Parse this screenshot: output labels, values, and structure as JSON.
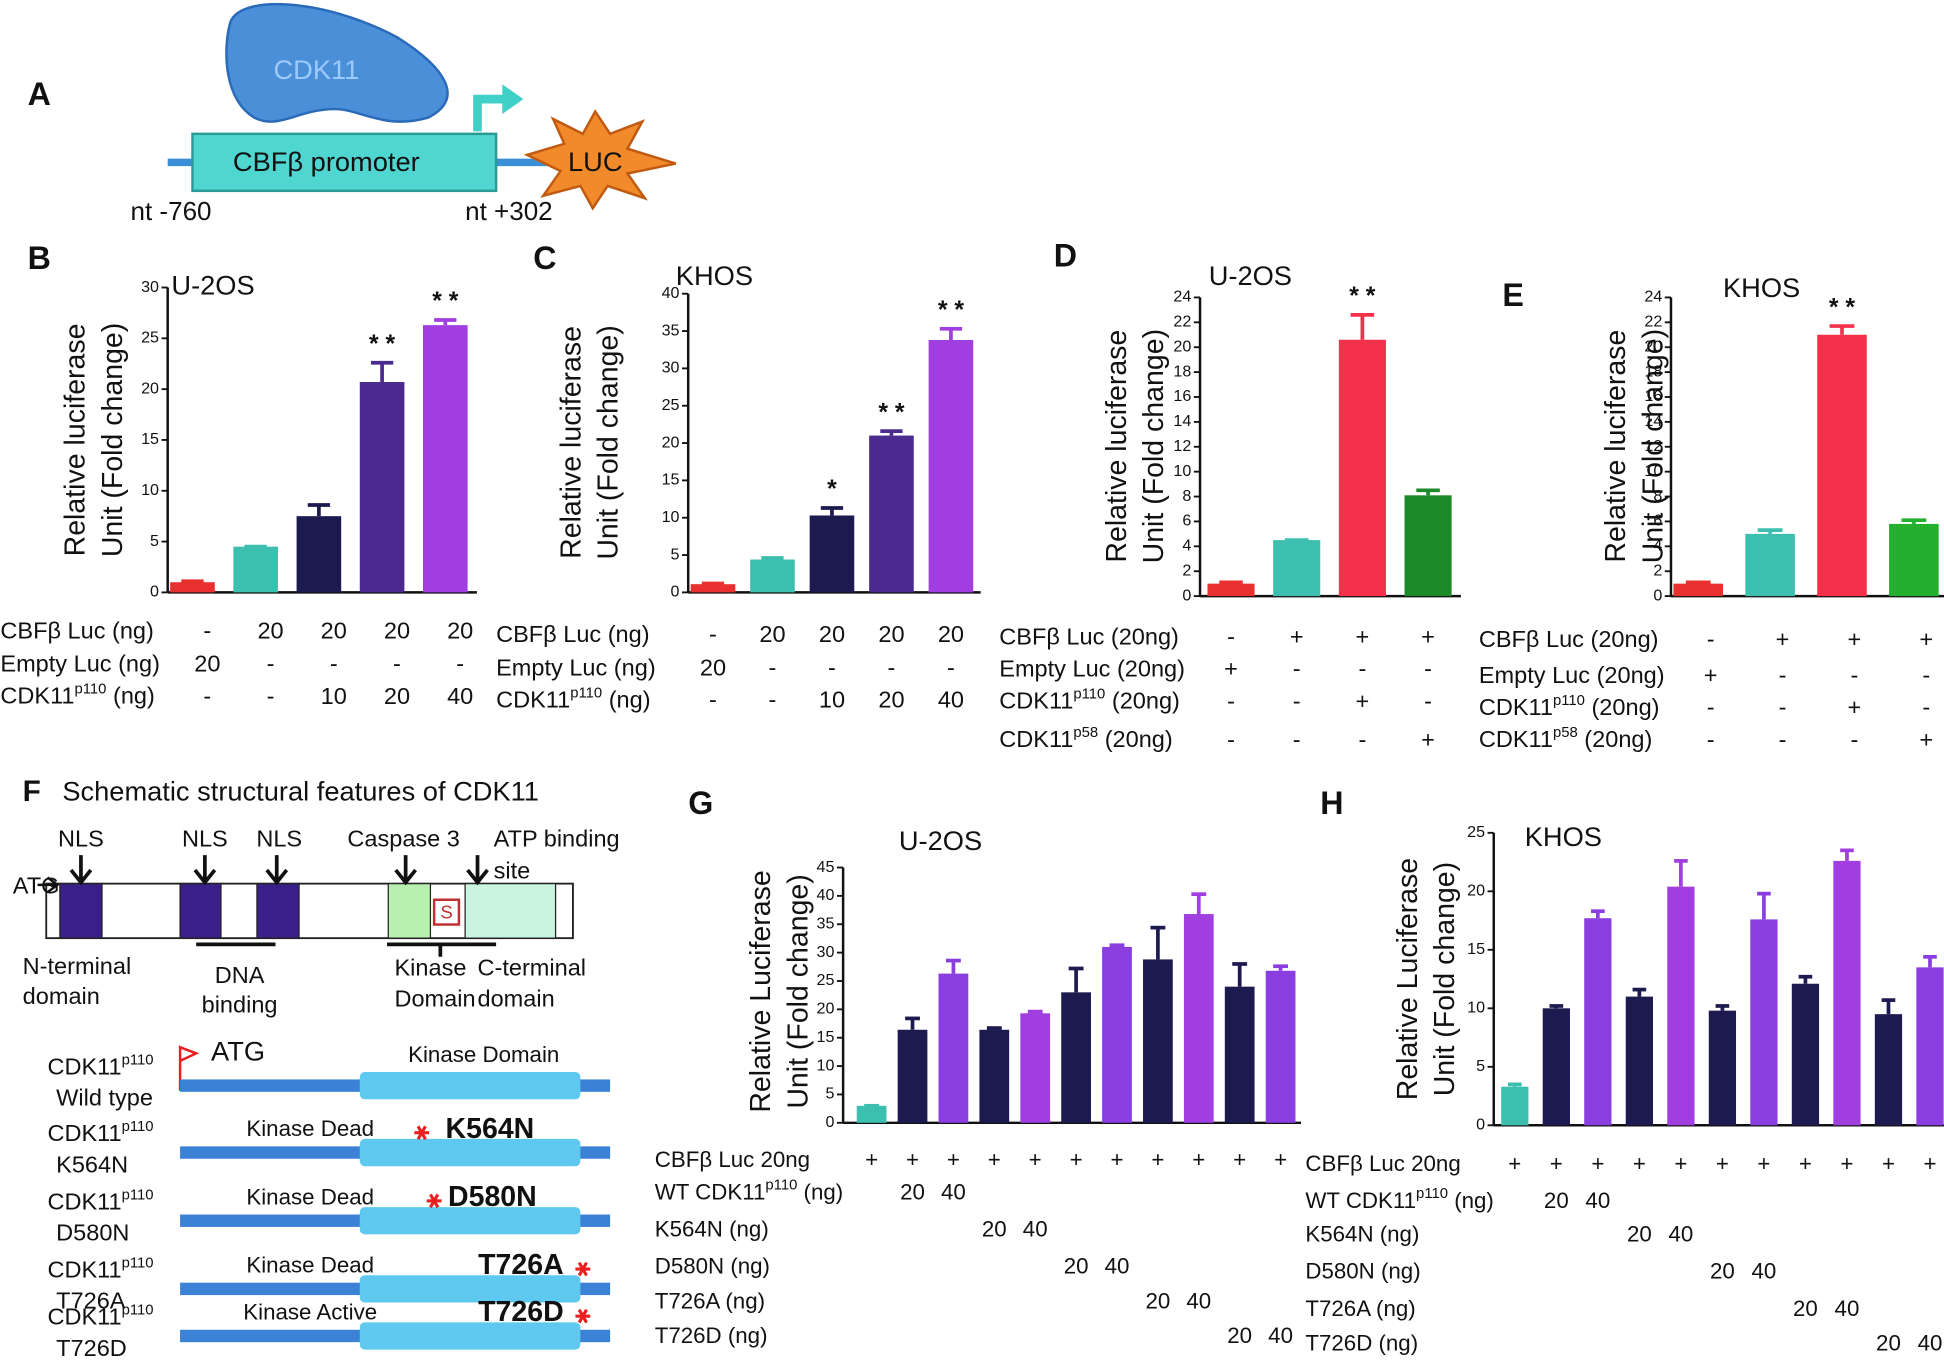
{
  "panel_a": {
    "letter": "A",
    "protein": "CDK11",
    "promoter": "CBFβ promoter",
    "reporter": "LUC",
    "start": "nt -760",
    "end": "nt +302"
  },
  "panel_f": {
    "letter": "F",
    "title": "Schematic structural features of CDK11",
    "atg": "ATG",
    "nls": [
      "NLS",
      "NLS",
      "NLS"
    ],
    "caspase": "Caspase 3",
    "atp": [
      "ATP binding",
      "site"
    ],
    "site_s": "S",
    "domains": [
      [
        "N-terminal",
        "domain"
      ],
      [
        "DNA",
        "binding"
      ],
      [
        "Kinase",
        "Domain"
      ],
      [
        "C-terminal",
        "domain"
      ]
    ],
    "construct_atg": "ATG",
    "constructs": [
      {
        "name": "CDK11",
        "sup": "p110",
        "variant": "Wild type",
        "label": "Kinase Domain"
      },
      {
        "name": "CDK11",
        "sup": "p110",
        "variant": "K564N",
        "label": "Kinase Dead",
        "mutation": "K564N"
      },
      {
        "name": "CDK11",
        "sup": "p110",
        "variant": "D580N",
        "label": "Kinase Dead",
        "mutation": "D580N"
      },
      {
        "name": "CDK11",
        "sup": "p110",
        "variant": "T726A",
        "label": "Kinase Dead",
        "mutation": "T726A"
      },
      {
        "name": "CDK11",
        "sup": "p110",
        "variant": "T726D",
        "label": "Kinase Active",
        "mutation": "T726D"
      }
    ]
  },
  "chart_data": [
    {
      "type": "bar",
      "panel": "B",
      "title": "U-2OS",
      "ylabel": [
        "Relative luciferase",
        "Unit (Fold change)"
      ],
      "ylim": [
        0,
        30
      ],
      "yticks": [
        0,
        5,
        10,
        15,
        20,
        25,
        30
      ],
      "values": [
        1,
        4.5,
        7.5,
        20.7,
        26.3
      ],
      "errors": [
        0.1,
        0,
        1.1,
        1.9,
        0.5
      ],
      "colors": [
        "#e8302f",
        "#3dbfb0",
        "#1c1a4f",
        "#4b2a8f",
        "#a13ee0"
      ],
      "significance": [
        null,
        null,
        null,
        "* *",
        "* *"
      ],
      "conditions": [
        {
          "label": "CBFβ Luc (ng)",
          "cells": [
            "-",
            "20",
            "20",
            "20",
            "20"
          ]
        },
        {
          "label": "Empty Luc (ng)",
          "cells": [
            "20",
            "-",
            "-",
            "-",
            "-"
          ]
        },
        {
          "label": {
            "main": "CDK11",
            "sup": "p110",
            "tail": " (ng)"
          },
          "cells": [
            "-",
            "-",
            "10",
            "20",
            "40"
          ]
        }
      ]
    },
    {
      "type": "bar",
      "panel": "C",
      "title": "KHOS",
      "ylabel": [
        "Relative luciferase",
        "Unit (Fold change)"
      ],
      "ylim": [
        0,
        40
      ],
      "yticks": [
        0,
        5,
        10,
        15,
        20,
        25,
        30,
        35,
        40
      ],
      "values": [
        1.1,
        4.4,
        10.3,
        21,
        33.8
      ],
      "errors": [
        0.1,
        0.2,
        1,
        0.6,
        1.5
      ],
      "colors": [
        "#e8302f",
        "#3dbfb0",
        "#1c1a4f",
        "#4b2a8f",
        "#a13ee0"
      ],
      "significance": [
        null,
        null,
        "*",
        "* *",
        "* *"
      ],
      "conditions": [
        {
          "label": "CBFβ Luc (ng)",
          "cells": [
            "-",
            "20",
            "20",
            "20",
            "20"
          ]
        },
        {
          "label": "Empty Luc (ng)",
          "cells": [
            "20",
            "-",
            "-",
            "-",
            "-"
          ]
        },
        {
          "label": {
            "main": "CDK11",
            "sup": "p110",
            "tail": " (ng)"
          },
          "cells": [
            "-",
            "-",
            "10",
            "20",
            "40"
          ]
        }
      ]
    },
    {
      "type": "bar",
      "panel": "D",
      "title": "U-2OS",
      "ylabel": [
        "Relative luciferase",
        "Unit (Fold change)"
      ],
      "ylim": [
        0,
        24
      ],
      "yticks": [
        0,
        2,
        4,
        6,
        8,
        10,
        12,
        14,
        16,
        18,
        20,
        22,
        24
      ],
      "values": [
        1,
        4.5,
        20.6,
        8.1
      ],
      "errors": [
        0.1,
        0,
        2,
        0.4
      ],
      "colors": [
        "#e8302f",
        "#3dbfb0",
        "#f5304a",
        "#1d8a2a"
      ],
      "significance": [
        null,
        null,
        "* *",
        null
      ],
      "conditions": [
        {
          "label": "CBFβ Luc (20ng)",
          "cells": [
            "-",
            "+",
            "+",
            "+"
          ]
        },
        {
          "label": "Empty Luc (20ng)",
          "cells": [
            "+",
            "-",
            "-",
            "-"
          ]
        },
        {
          "label": {
            "main": "CDK11",
            "sup": "p110",
            "tail": " (20ng)"
          },
          "cells": [
            "-",
            "-",
            "+",
            "-"
          ]
        },
        {
          "label": {
            "main": "CDK11",
            "sup": "p58",
            "tail": " (20ng)"
          },
          "cells": [
            "-",
            "-",
            "-",
            "+"
          ]
        }
      ]
    },
    {
      "type": "bar",
      "panel": "E",
      "title": "KHOS",
      "ylabel": [
        "Relative luciferase",
        "Unit (Fold change)"
      ],
      "ylim": [
        0,
        24
      ],
      "yticks": [
        0,
        2,
        4,
        6,
        8,
        10,
        12,
        14,
        16,
        18,
        20,
        22,
        24
      ],
      "values": [
        1,
        5,
        21,
        5.8
      ],
      "errors": [
        0.1,
        0.3,
        0.7,
        0.3
      ],
      "colors": [
        "#e8302f",
        "#3dbfb0",
        "#f5304a",
        "#22b02e"
      ],
      "significance": [
        null,
        null,
        "* *",
        null
      ],
      "conditions": [
        {
          "label": "CBFβ Luc (20ng)",
          "cells": [
            "-",
            "+",
            "+",
            "+"
          ]
        },
        {
          "label": "Empty Luc (20ng)",
          "cells": [
            "+",
            "-",
            "-",
            "-"
          ]
        },
        {
          "label": {
            "main": "CDK11",
            "sup": "p110",
            "tail": " (20ng)"
          },
          "cells": [
            "-",
            "-",
            "+",
            "-"
          ]
        },
        {
          "label": {
            "main": "CDK11",
            "sup": "p58",
            "tail": " (20ng)"
          },
          "cells": [
            "-",
            "-",
            "-",
            "+"
          ]
        }
      ]
    },
    {
      "type": "bar",
      "panel": "G",
      "title": "U-2OS",
      "ylabel": [
        "Relative Luciferase",
        "Unit (Fold change)"
      ],
      "ylim": [
        0,
        45
      ],
      "yticks": [
        0,
        5,
        10,
        15,
        20,
        25,
        30,
        35,
        40,
        45
      ],
      "values": [
        3,
        16.4,
        26.3,
        16.4,
        19.3,
        23,
        31,
        28.8,
        36.8,
        24,
        26.8
      ],
      "errors": [
        0,
        2,
        2.3,
        0.3,
        0.3,
        4.2,
        0.3,
        5.6,
        3.5,
        4,
        0.8
      ],
      "colors": [
        "#3dbfb0",
        "#1c1a4f",
        "#8a3ee0",
        "#1c1a4f",
        "#a13ee0",
        "#1c1a4f",
        "#8a3ee0",
        "#1c1a4f",
        "#a13ee0",
        "#1c1a4f",
        "#8a3ee0"
      ],
      "conditions": [
        {
          "label": "CBFβ Luc 20ng",
          "cells": [
            "+",
            "+",
            "+",
            "+",
            "+",
            "+",
            "+",
            "+",
            "+",
            "+",
            "+"
          ]
        },
        {
          "label": {
            "main": "WT CDK11",
            "sup": "p110",
            "tail": " (ng)"
          },
          "cells": [
            null,
            "20",
            "40",
            null,
            null,
            null,
            null,
            null,
            null,
            null,
            null
          ]
        },
        {
          "label": "K564N (ng)",
          "cells": [
            null,
            null,
            null,
            "20",
            "40",
            null,
            null,
            null,
            null,
            null,
            null
          ]
        },
        {
          "label": "D580N (ng)",
          "cells": [
            null,
            null,
            null,
            null,
            null,
            "20",
            "40",
            null,
            null,
            null,
            null
          ]
        },
        {
          "label": "T726A (ng)",
          "cells": [
            null,
            null,
            null,
            null,
            null,
            null,
            null,
            "20",
            "40",
            null,
            null
          ]
        },
        {
          "label": "T726D (ng)",
          "cells": [
            null,
            null,
            null,
            null,
            null,
            null,
            null,
            null,
            null,
            "20",
            "40"
          ]
        }
      ]
    },
    {
      "type": "bar",
      "panel": "H",
      "title": "KHOS",
      "ylabel": [
        "Relative Luciferase",
        "Unit (Fold change)"
      ],
      "ylim": [
        0,
        25
      ],
      "yticks": [
        0,
        5,
        10,
        15,
        20,
        25
      ],
      "values": [
        3.3,
        10,
        17.7,
        11,
        20.4,
        9.8,
        17.6,
        12.1,
        22.6,
        9.5,
        13.5
      ],
      "errors": [
        0.2,
        0.2,
        0.6,
        0.6,
        2.2,
        0.4,
        2.2,
        0.6,
        0.9,
        1.2,
        0.9
      ],
      "colors": [
        "#3dbfb0",
        "#1c1a4f",
        "#8a3ee0",
        "#1c1a4f",
        "#a13ee0",
        "#1c1a4f",
        "#8a3ee0",
        "#1c1a4f",
        "#a13ee0",
        "#1c1a4f",
        "#8a3ee0"
      ],
      "conditions": [
        {
          "label": "CBFβ Luc 20ng",
          "cells": [
            "+",
            "+",
            "+",
            "+",
            "+",
            "+",
            "+",
            "+",
            "+",
            "+",
            "+"
          ]
        },
        {
          "label": {
            "main": "WT CDK11",
            "sup": "p110",
            "tail": " (ng)"
          },
          "cells": [
            null,
            "20",
            "40",
            null,
            null,
            null,
            null,
            null,
            null,
            null,
            null
          ]
        },
        {
          "label": "K564N (ng)",
          "cells": [
            null,
            null,
            null,
            "20",
            "40",
            null,
            null,
            null,
            null,
            null,
            null
          ]
        },
        {
          "label": "D580N (ng)",
          "cells": [
            null,
            null,
            null,
            null,
            null,
            "20",
            "40",
            null,
            null,
            null,
            null
          ]
        },
        {
          "label": "T726A (ng)",
          "cells": [
            null,
            null,
            null,
            null,
            null,
            null,
            null,
            "20",
            "40",
            null,
            null
          ]
        },
        {
          "label": "T726D (ng)",
          "cells": [
            null,
            null,
            null,
            null,
            null,
            null,
            null,
            null,
            null,
            "20",
            "40"
          ]
        }
      ]
    }
  ]
}
